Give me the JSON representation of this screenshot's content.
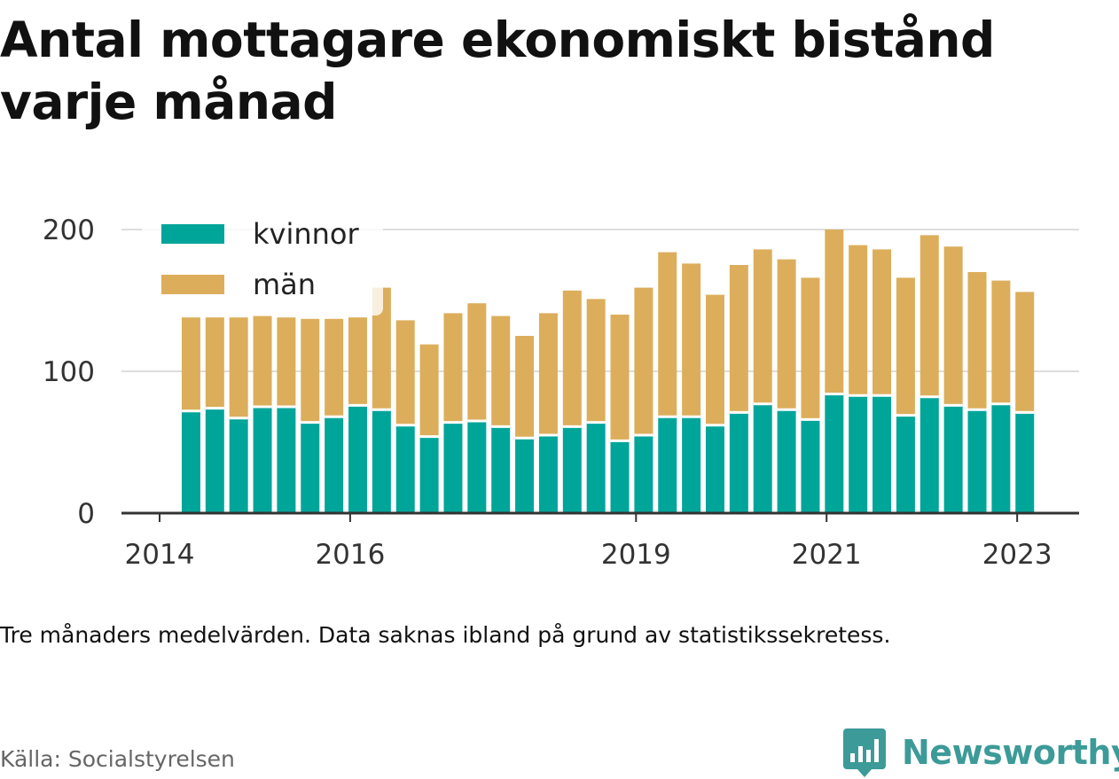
{
  "title": "Antal mottagare ekonomiskt bistånd varje månad",
  "note": "Tre månaders medelvärden. Data saknas ibland på grund av statistikssekretess.",
  "source": "Källa: Socialstyrelsen",
  "brand": {
    "name": "Newsworthy",
    "color": "#3c9b98",
    "icon": "newsworthy-logo-icon"
  },
  "chart_data": {
    "type": "bar",
    "stacked": true,
    "x_unit": "year",
    "x": [
      2014.33,
      2014.58,
      2014.83,
      2015.08,
      2015.33,
      2015.58,
      2015.83,
      2016.08,
      2016.33,
      2016.58,
      2016.83,
      2017.08,
      2017.33,
      2017.58,
      2017.83,
      2018.08,
      2018.33,
      2018.58,
      2018.83,
      2019.08,
      2019.33,
      2019.58,
      2019.83,
      2020.08,
      2020.33,
      2020.58,
      2020.83,
      2021.08,
      2021.33,
      2021.58,
      2021.83,
      2022.08,
      2022.33,
      2022.58,
      2022.83,
      2023.08
    ],
    "series": [
      {
        "name": "kvinnor",
        "color": "#00a59a",
        "values": [
          72,
          74,
          67,
          75,
          75,
          64,
          68,
          76,
          73,
          62,
          54,
          64,
          65,
          61,
          53,
          55,
          61,
          64,
          51,
          55,
          68,
          68,
          62,
          71,
          77,
          73,
          66,
          84,
          83,
          83,
          69,
          82,
          76,
          73,
          77,
          71
        ]
      },
      {
        "name": "män",
        "color": "#dcae5b",
        "values": [
          66,
          64,
          71,
          64,
          63,
          73,
          69,
          62,
          86,
          74,
          65,
          77,
          83,
          78,
          72,
          86,
          96,
          87,
          89,
          104,
          116,
          108,
          92,
          104,
          109,
          106,
          100,
          116,
          106,
          103,
          97,
          114,
          112,
          97,
          87,
          85
        ]
      }
    ],
    "x_ticks": [
      "2014",
      "2016",
      "2019",
      "2021",
      "2023"
    ],
    "x_tick_values": [
      2014,
      2016,
      2019,
      2021,
      2023
    ],
    "y_ticks": [
      "0",
      "100",
      "200"
    ],
    "ylim": [
      0,
      200
    ],
    "xlim": [
      2013.6,
      2023.65
    ],
    "grid": true,
    "legend": "top-left",
    "title": "Antal mottagare ekonomiskt bistånd varje månad",
    "xlabel": "",
    "ylabel": ""
  }
}
